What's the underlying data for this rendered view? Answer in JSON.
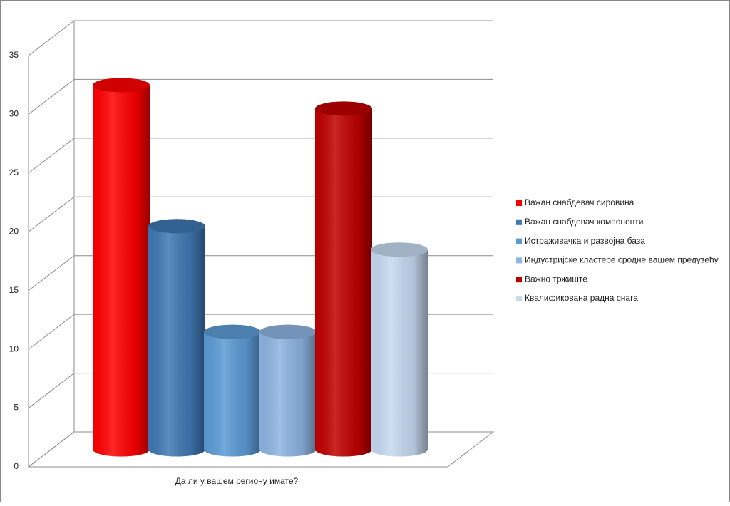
{
  "chart_data": {
    "type": "bar",
    "categories": [
      "Да ли у вашем региону имате?"
    ],
    "series": [
      {
        "name": "Важан снабдевач сировина",
        "color": "#ff0000",
        "values": [
          31
        ]
      },
      {
        "name": "Важан снабдевач компоненти",
        "color": "#3f78b3",
        "values": [
          19
        ]
      },
      {
        "name": "Истраживачка и развојна база",
        "color": "#5b9bd5",
        "values": [
          10
        ]
      },
      {
        "name": "Индустријске кластере сродне вашем предузећу",
        "color": "#8db4e2",
        "values": [
          10
        ]
      },
      {
        "name": "Важно тржиште",
        "color": "#c00000",
        "values": [
          29
        ]
      },
      {
        "name": "Квалификована радна снага",
        "color": "#c6d9f1",
        "values": [
          17
        ]
      }
    ],
    "ylim": [
      0,
      35
    ],
    "yticks": [
      0,
      5,
      10,
      15,
      20,
      25,
      30,
      35
    ],
    "grid": true,
    "legend": "right"
  }
}
